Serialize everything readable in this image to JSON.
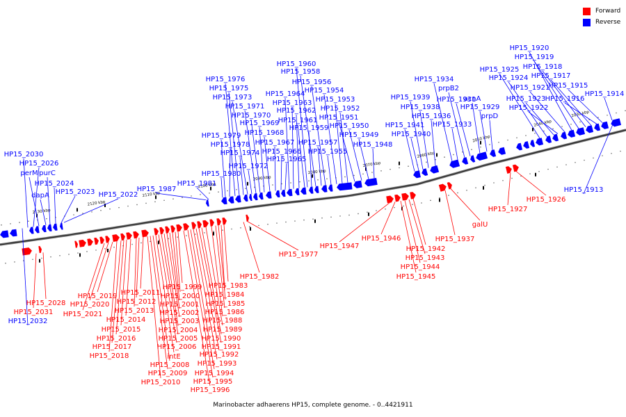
{
  "caption": "Marinobacter adhaerens HP15, complete genome. - 0..4421911",
  "legend": {
    "forward": {
      "label": "Forward",
      "color": "#ff0000"
    },
    "reverse": {
      "label": "Reverse",
      "color": "#0000ff"
    }
  },
  "scale_labels": [
    "2030 kbp",
    "2040 kbp",
    "2050 kbp",
    "2060 kbp",
    "2070 kbp",
    "2080 kbp",
    "2090 kbp",
    "2100 kbp",
    "2110 kbp",
    "2120 kbp",
    "2130 kbp"
  ],
  "reverse_labels": [
    "HP15_1914",
    "HP15_1915",
    "HP15_1916",
    "HP15_1917",
    "HP15_1918",
    "HP15_1919",
    "HP15_1920",
    "HP15_1921",
    "HP15_1922",
    "HP15_1923",
    "HP15_1924",
    "HP15_1925",
    "prpD",
    "HP15_1929",
    "acnA",
    "HP15_1931",
    "prpB2",
    "HP15_1933",
    "HP15_1934",
    "HP15_1936",
    "HP15_1938",
    "HP15_1939",
    "HP15_1940",
    "HP15_1941",
    "HP15_1948",
    "HP15_1949",
    "HP15_1950",
    "HP15_1951",
    "HP15_1952",
    "HP15_1953",
    "HP15_1954",
    "HP15_1955",
    "HP15_1956",
    "HP15_1957",
    "HP15_1958",
    "HP15_1959",
    "HP15_1960",
    "HP15_1961",
    "HP15_1962",
    "HP15_1963",
    "HP15_1964",
    "HP15_1965",
    "HP15_1966",
    "HP15_1967",
    "HP15_1968",
    "HP15_1969",
    "HP15_1970",
    "HP15_1971",
    "HP15_1972",
    "HP15_1973",
    "HP15_1974",
    "HP15_1975",
    "HP15_1976",
    "HP15_1978",
    "HP15_1979",
    "HP15_1980",
    "HP15_1981",
    "HP15_1987",
    "HP15_2022",
    "HP15_2023",
    "HP15_2024",
    "purC",
    "dapA",
    "perM",
    "HP15_2026",
    "HP15_2030",
    "HP15_1913",
    "HP15_2032"
  ],
  "forward_labels": [
    "HP15_1926",
    "HP15_1927",
    "galU",
    "HP15_1937",
    "HP15_1942",
    "HP15_1943",
    "HP15_1944",
    "HP15_1945",
    "HP15_1946",
    "HP15_1947",
    "HP15_1977",
    "HP15_1982",
    "HP15_1983",
    "HP15_1984",
    "HP15_1985",
    "HP15_1986",
    "HP15_1988",
    "HP15_1989",
    "HP15_1990",
    "HP15_1991",
    "HP15_1992",
    "HP15_1993",
    "HP15_1994",
    "HP15_1995",
    "HP15_1996",
    "HP15_1999",
    "HP15_2000",
    "HP15_2001",
    "HP15_2002",
    "HP15_2003",
    "HP15_2004",
    "HP15_2005",
    "HP15_2006",
    "intE",
    "HP15_2008",
    "HP15_2009",
    "HP15_2010",
    "HP15_2011",
    "HP15_2012",
    "HP15_2013",
    "HP15_2014",
    "HP15_2015",
    "HP15_2016",
    "HP15_2017",
    "HP15_2018",
    "HP15_2019",
    "HP15_2020",
    "HP15_2021",
    "HP15_2028",
    "HP15_2031"
  ]
}
